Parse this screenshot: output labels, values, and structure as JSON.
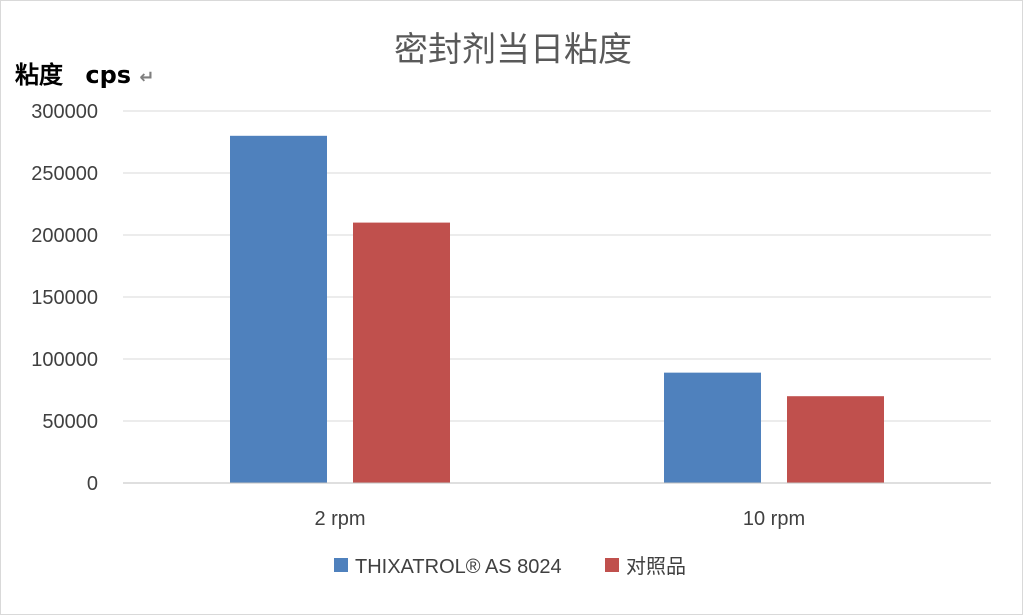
{
  "chart_data": {
    "type": "bar",
    "title": "密封剂当日粘度",
    "ylabel": "粘度",
    "yunit": "cps",
    "ylabel_suffix": "↵",
    "xlabel": "",
    "categories": [
      "2 rpm",
      "10 rpm"
    ],
    "ylim": [
      0,
      300000
    ],
    "yticks": [
      0,
      50000,
      100000,
      150000,
      200000,
      250000,
      300000
    ],
    "grid": true,
    "legend_position": "bottom",
    "series": [
      {
        "name": "THIXATROL® AS 8024",
        "values": [
          280000,
          89000
        ],
        "color": "#4f81bd"
      },
      {
        "name": "对照品",
        "values": [
          210000,
          70000
        ],
        "color": "#c0504d"
      }
    ]
  }
}
